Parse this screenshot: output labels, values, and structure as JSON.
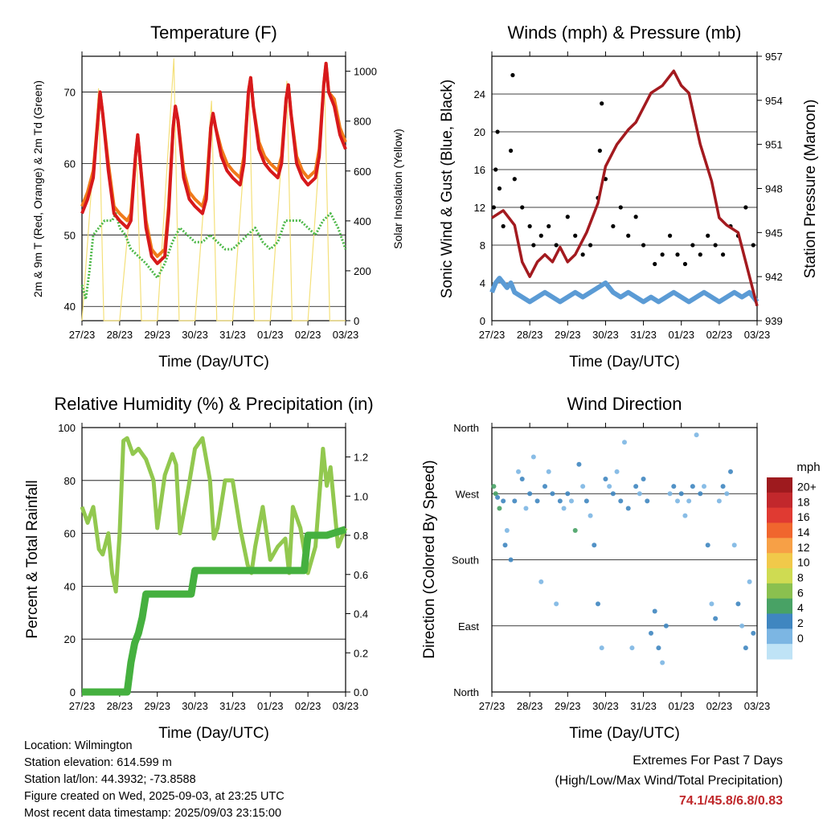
{
  "colors": {
    "temp_2m": "#d7191c",
    "temp_9m": "#f07a1a",
    "dewpoint": "#4db848",
    "insolation": "#f4e07a",
    "wind": "#5b9bd5",
    "gust": "#000000",
    "pressure": "#a31a1f",
    "rh": "#92c84f",
    "precip": "#45b03f",
    "extremes": "#c0282b"
  },
  "x_ticks": [
    "27/23",
    "28/23",
    "29/23",
    "30/23",
    "31/23",
    "01/23",
    "02/23",
    "03/23"
  ],
  "chart_data": [
    {
      "type": "line",
      "title": "Temperature (F)",
      "xlabel": "Time (Day/UTC)",
      "ylabel": "2m & 9m T (Red, Orange) & 2m Td (Green)",
      "ylabel_right": "Solar Insolation (Yellow)",
      "ylim": [
        38,
        75
      ],
      "ylim_right": [
        0,
        1060
      ],
      "yticks": [
        40,
        50,
        60,
        70
      ],
      "yticks_right": [
        0,
        200,
        400,
        600,
        800,
        1000
      ],
      "series": [
        {
          "id": "t2m",
          "axis": "left",
          "x": [
            0,
            0.15,
            0.3,
            0.42,
            0.48,
            0.55,
            0.7,
            0.85,
            1.0,
            1.2,
            1.3,
            1.42,
            1.48,
            1.55,
            1.7,
            1.85,
            2.0,
            2.2,
            2.3,
            2.42,
            2.48,
            2.55,
            2.7,
            2.85,
            3.0,
            3.2,
            3.3,
            3.42,
            3.48,
            3.55,
            3.7,
            3.85,
            4.0,
            4.2,
            4.3,
            4.42,
            4.48,
            4.55,
            4.7,
            4.85,
            5.0,
            5.2,
            5.3,
            5.42,
            5.48,
            5.55,
            5.7,
            5.85,
            6.0,
            6.2,
            6.3,
            6.42,
            6.48,
            6.55,
            6.7,
            6.85,
            7.0
          ],
          "values": [
            53,
            55,
            58,
            66,
            70,
            67,
            59,
            53,
            52,
            51,
            52,
            61,
            64,
            60,
            51,
            47,
            46,
            47,
            53,
            65,
            68,
            66,
            58,
            55,
            54,
            53,
            55,
            65,
            67,
            65,
            61,
            59,
            58,
            57,
            60,
            70,
            72,
            68,
            62,
            60,
            59,
            58,
            60,
            69,
            71,
            67,
            60,
            58,
            57,
            58,
            61,
            71,
            74,
            70,
            68,
            64,
            62
          ]
        },
        {
          "id": "t9m",
          "axis": "left",
          "x": [
            0,
            0.15,
            0.3,
            0.42,
            0.48,
            0.55,
            0.7,
            0.85,
            1.0,
            1.2,
            1.3,
            1.42,
            1.48,
            1.55,
            1.7,
            1.85,
            2.0,
            2.2,
            2.3,
            2.42,
            2.48,
            2.55,
            2.7,
            2.85,
            3.0,
            3.2,
            3.3,
            3.42,
            3.48,
            3.55,
            3.7,
            3.85,
            4.0,
            4.2,
            4.3,
            4.42,
            4.48,
            4.55,
            4.7,
            4.85,
            5.0,
            5.2,
            5.3,
            5.42,
            5.48,
            5.55,
            5.7,
            5.85,
            6.0,
            6.2,
            6.3,
            6.42,
            6.48,
            6.55,
            6.7,
            6.85,
            7.0
          ],
          "values": [
            54,
            56,
            59,
            66,
            70,
            67,
            60,
            54,
            53,
            52,
            53,
            61,
            64,
            60,
            52,
            48,
            47,
            48,
            54,
            65,
            68,
            66,
            59,
            56,
            55,
            54,
            56,
            65,
            67,
            65,
            62,
            60,
            59,
            58,
            61,
            70,
            72,
            68,
            63,
            61,
            60,
            59,
            61,
            69,
            71,
            67,
            61,
            59,
            58,
            59,
            62,
            71,
            74,
            70,
            69,
            65,
            63
          ]
        },
        {
          "id": "td2m",
          "axis": "left",
          "x": [
            0,
            0.1,
            0.2,
            0.3,
            0.45,
            0.6,
            0.8,
            0.9,
            1.0,
            1.15,
            1.3,
            1.5,
            1.7,
            1.85,
            2.0,
            2.2,
            2.4,
            2.5,
            2.6,
            2.8,
            3.0,
            3.2,
            3.4,
            3.6,
            3.8,
            4.0,
            4.2,
            4.4,
            4.6,
            4.8,
            5.0,
            5.2,
            5.4,
            5.6,
            5.8,
            6.0,
            6.2,
            6.4,
            6.6,
            6.8,
            7.0
          ],
          "values": [
            43,
            41,
            45,
            50,
            51,
            52,
            52,
            53,
            51,
            50,
            48,
            47,
            46,
            45,
            44,
            46,
            49,
            50,
            51,
            50,
            49,
            49,
            50,
            49,
            48,
            48,
            49,
            50,
            51,
            49,
            48,
            49,
            52,
            52,
            52,
            51,
            50,
            52,
            53,
            51,
            48
          ]
        },
        {
          "id": "solar",
          "axis": "right",
          "x": [
            0,
            0.44,
            0.58,
            1.0,
            1.44,
            1.58,
            2.0,
            2.44,
            2.58,
            3.0,
            3.44,
            3.58,
            4.0,
            4.44,
            4.58,
            5.0,
            5.44,
            5.58,
            6.0,
            6.44,
            6.58,
            7.0
          ],
          "values": [
            0,
            930,
            0,
            0,
            720,
            0,
            0,
            1050,
            0,
            0,
            880,
            0,
            0,
            930,
            0,
            0,
            960,
            0,
            0,
            960,
            0,
            0
          ],
          "note": "diurnal peaks"
        }
      ]
    },
    {
      "type": "line",
      "title": "Winds (mph) & Pressure (mb)",
      "xlabel": "Time (Day/UTC)",
      "ylabel": "Sonic Wind & Gust (Blue, Black)",
      "ylabel_right": "Station Pressure (Maroon)",
      "ylim": [
        0,
        28
      ],
      "ylim_right": [
        939,
        957
      ],
      "yticks": [
        0,
        4,
        8,
        12,
        16,
        20,
        24
      ],
      "yticks_right": [
        939,
        942,
        945,
        948,
        951,
        954,
        957
      ],
      "series": [
        {
          "id": "wind",
          "axis": "left",
          "x": [
            0,
            0.1,
            0.2,
            0.3,
            0.4,
            0.5,
            0.6,
            0.8,
            1.0,
            1.2,
            1.4,
            1.6,
            1.8,
            2.0,
            2.2,
            2.4,
            2.6,
            2.8,
            3.0,
            3.2,
            3.4,
            3.6,
            3.8,
            4.0,
            4.2,
            4.4,
            4.6,
            4.8,
            5.0,
            5.2,
            5.4,
            5.6,
            5.8,
            6.0,
            6.2,
            6.4,
            6.6,
            6.8,
            7.0
          ],
          "values": [
            3,
            4,
            4.5,
            4,
            3.5,
            4,
            3,
            2.5,
            2,
            2.5,
            3,
            2.5,
            2,
            2.5,
            3,
            2.5,
            3,
            3.5,
            4,
            3,
            2.5,
            3,
            2.5,
            2,
            2.5,
            2,
            2.5,
            3,
            2.5,
            2,
            2.5,
            3,
            2.5,
            2,
            2.5,
            3,
            2.5,
            3,
            2
          ]
        },
        {
          "id": "pressure",
          "axis": "right",
          "x": [
            0,
            0.3,
            0.6,
            0.8,
            1.0,
            1.2,
            1.4,
            1.6,
            1.8,
            2.0,
            2.2,
            2.5,
            2.8,
            3.0,
            3.3,
            3.6,
            3.8,
            4.0,
            4.2,
            4.5,
            4.8,
            5.0,
            5.2,
            5.5,
            5.8,
            6.0,
            6.2,
            6.5,
            6.8,
            7.0
          ],
          "values": [
            946,
            946.5,
            945.5,
            943,
            942,
            943,
            943.5,
            943,
            944,
            943,
            943.5,
            945,
            947,
            949.5,
            951,
            952,
            952.5,
            953.5,
            954.5,
            955,
            956,
            955,
            954.5,
            951,
            948.5,
            946,
            945.5,
            945,
            942,
            940
          ]
        }
      ],
      "gust_points": {
        "x": [
          0.05,
          0.1,
          0.15,
          0.2,
          0.3,
          0.5,
          0.55,
          0.6,
          0.8,
          1.0,
          1.1,
          1.3,
          1.5,
          1.7,
          2.0,
          2.2,
          2.4,
          2.6,
          2.8,
          2.85,
          2.9,
          3.0,
          3.2,
          3.4,
          3.6,
          3.8,
          4.0,
          4.3,
          4.5,
          4.7,
          4.9,
          5.1,
          5.3,
          5.5,
          5.7,
          5.9,
          6.1,
          6.3,
          6.5,
          6.7,
          6.9
        ],
        "y": [
          12,
          16,
          20,
          14,
          10,
          18,
          26,
          15,
          12,
          10,
          8,
          9,
          10,
          8,
          11,
          9,
          7,
          8,
          13,
          18,
          23,
          15,
          10,
          12,
          9,
          11,
          8,
          6,
          7,
          9,
          7,
          6,
          8,
          7,
          9,
          8,
          7,
          10,
          9,
          12,
          8
        ]
      }
    },
    {
      "type": "line",
      "title": "Relative Humidity (%) & Precipitation (in)",
      "xlabel": "Time (Day/UTC)",
      "ylabel": "Percent & Total Rainfall",
      "ylim": [
        0,
        100
      ],
      "ylim_right": [
        0,
        1.35
      ],
      "yticks": [
        0,
        20,
        40,
        60,
        80,
        100
      ],
      "yticks_right": [
        0.0,
        0.2,
        0.4,
        0.6,
        0.8,
        1.0,
        1.2
      ],
      "series": [
        {
          "id": "rh",
          "axis": "left",
          "x": [
            0,
            0.15,
            0.3,
            0.45,
            0.55,
            0.7,
            0.8,
            0.9,
            1.0,
            1.1,
            1.2,
            1.35,
            1.5,
            1.7,
            1.9,
            2.0,
            2.2,
            2.4,
            2.5,
            2.6,
            2.8,
            3.0,
            3.2,
            3.4,
            3.5,
            3.6,
            3.8,
            4.0,
            4.2,
            4.4,
            4.5,
            4.6,
            4.8,
            5.0,
            5.2,
            5.4,
            5.5,
            5.6,
            5.8,
            6.0,
            6.2,
            6.4,
            6.5,
            6.6,
            6.8,
            7.0
          ],
          "values": [
            70,
            64,
            70,
            54,
            52,
            60,
            45,
            38,
            60,
            95,
            96,
            90,
            92,
            88,
            80,
            62,
            82,
            90,
            86,
            60,
            75,
            92,
            96,
            80,
            58,
            62,
            80,
            80,
            62,
            48,
            45,
            55,
            70,
            50,
            55,
            58,
            45,
            70,
            62,
            45,
            55,
            92,
            78,
            85,
            55,
            62
          ]
        },
        {
          "id": "precip",
          "axis": "right",
          "x": [
            0,
            1.2,
            1.3,
            1.4,
            1.5,
            1.6,
            1.7,
            2.0,
            2.5,
            2.9,
            3.0,
            3.5,
            4.0,
            5.0,
            5.9,
            6.0,
            6.5,
            7.0
          ],
          "values": [
            0,
            0,
            0.15,
            0.25,
            0.3,
            0.38,
            0.5,
            0.5,
            0.5,
            0.5,
            0.62,
            0.62,
            0.62,
            0.62,
            0.62,
            0.8,
            0.8,
            0.83
          ]
        }
      ]
    },
    {
      "type": "scatter",
      "title": "Wind Direction",
      "xlabel": "Time (Day/UTC)",
      "ylabel": "Direction (Colored By Speed)",
      "ytick_labels": [
        "North",
        "East",
        "South",
        "West",
        "North"
      ],
      "colorbar": {
        "title": "mph",
        "labels": [
          "20+",
          "18",
          "16",
          "14",
          "12",
          "10",
          "8",
          "6",
          "4",
          "2",
          "0"
        ],
        "colors": [
          "#9e1a1e",
          "#c2282c",
          "#e03a32",
          "#f0662e",
          "#f7a046",
          "#f1c94a",
          "#cfdb52",
          "#8ac04f",
          "#48a265",
          "#3f86c0",
          "#7cb6e3",
          "#bfe3f6"
        ]
      },
      "points": {
        "x": [
          0.05,
          0.1,
          0.15,
          0.2,
          0.3,
          0.35,
          0.4,
          0.5,
          0.6,
          0.7,
          0.8,
          0.9,
          1.0,
          1.1,
          1.2,
          1.3,
          1.4,
          1.5,
          1.6,
          1.7,
          1.8,
          1.9,
          2.0,
          2.1,
          2.2,
          2.3,
          2.4,
          2.5,
          2.6,
          2.7,
          2.8,
          2.9,
          3.0,
          3.1,
          3.2,
          3.3,
          3.4,
          3.5,
          3.6,
          3.7,
          3.8,
          3.9,
          4.0,
          4.1,
          4.2,
          4.3,
          4.4,
          4.5,
          4.6,
          4.7,
          4.8,
          4.9,
          5.0,
          5.1,
          5.2,
          5.3,
          5.4,
          5.5,
          5.6,
          5.7,
          5.8,
          5.9,
          6.0,
          6.1,
          6.2,
          6.3,
          6.4,
          6.5,
          6.6,
          6.7,
          6.8,
          6.9
        ],
        "y": [
          280,
          270,
          265,
          250,
          260,
          200,
          220,
          180,
          260,
          300,
          290,
          250,
          270,
          320,
          260,
          150,
          280,
          300,
          270,
          120,
          260,
          250,
          270,
          260,
          220,
          310,
          280,
          260,
          240,
          200,
          120,
          60,
          290,
          280,
          270,
          300,
          260,
          340,
          250,
          60,
          280,
          270,
          290,
          260,
          80,
          110,
          60,
          40,
          90,
          270,
          280,
          260,
          270,
          240,
          260,
          280,
          350,
          270,
          280,
          200,
          120,
          100,
          260,
          280,
          270,
          300,
          200,
          120,
          90,
          60,
          150,
          80
        ],
        "speed": [
          6,
          5,
          4,
          6,
          3,
          4,
          2,
          4,
          3,
          2,
          3,
          2,
          3,
          2,
          3,
          2,
          3,
          2,
          3,
          2,
          3,
          2,
          3,
          2,
          6,
          3,
          2,
          3,
          2,
          4,
          3,
          2,
          3,
          2,
          3,
          2,
          3,
          2,
          3,
          2,
          3,
          2,
          3,
          4,
          3,
          4,
          3,
          2,
          3,
          2,
          3,
          2,
          3,
          2,
          2,
          3,
          2,
          3,
          2,
          3,
          2,
          3,
          2,
          3,
          2,
          3,
          2,
          3,
          2,
          3,
          2,
          3
        ]
      }
    }
  ],
  "info": {
    "location": "Location: Wilmington",
    "elevation": "Station elevation: 614.599 m",
    "latlon": "Station lat/lon: 44.3932; -73.8588",
    "created": "Figure created on Wed, 2025-09-03, at 23:25 UTC",
    "latest": "Most recent data timestamp: 2025/09/03 23:15:00"
  },
  "extremes": {
    "title": "Extremes For Past 7 Days",
    "subtitle": "(High/Low/Max Wind/Total Precipitation)",
    "values": "74.1/45.8/6.8/0.83"
  }
}
